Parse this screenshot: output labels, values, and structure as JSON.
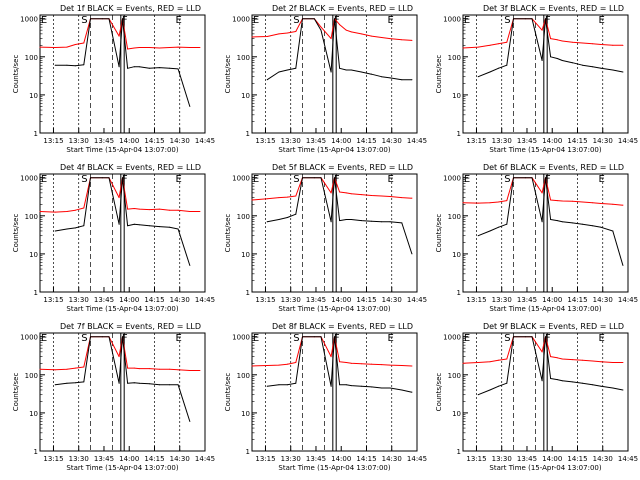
{
  "figure": {
    "ylabel": "Counts/sec",
    "xlabel": "Start Time (15-Apr-04 13:07:00)",
    "x_tick_labels": [
      "13:15",
      "13:30",
      "13:45",
      "14:00",
      "14:15",
      "14:30",
      "14:45"
    ],
    "y_tick_labels": [
      "1",
      "10",
      "100",
      "1000"
    ],
    "markers": [
      "E",
      "S",
      "F",
      "E"
    ],
    "colors": {
      "events": "#000000",
      "lld": "#ff0000",
      "axes": "#000000"
    }
  },
  "chart_data": [
    {
      "type": "line",
      "title": "Det 1f BLACK = Events, RED = LLD",
      "x": [
        "13:07",
        "13:16",
        "13:23",
        "13:28",
        "13:33",
        "13:37",
        "13:44",
        "13:48",
        "13:54",
        "13:56",
        "13:59",
        "14:03",
        "14:06",
        "14:12",
        "14:18",
        "14:24",
        "14:29",
        "14:36",
        "14:42"
      ],
      "series": [
        {
          "name": "LLD",
          "values": [
            180,
            175,
            180,
            210,
            230,
            1000,
            1000,
            1000,
            350,
            1000,
            160,
            170,
            175,
            175,
            170,
            175,
            180,
            175,
            175
          ]
        },
        {
          "name": "Events",
          "values": [
            null,
            60,
            60,
            58,
            62,
            1000,
            1000,
            1000,
            55,
            1000,
            50,
            55,
            55,
            50,
            52,
            50,
            48,
            5,
            null
          ]
        }
      ],
      "ylim": [
        1,
        1000
      ],
      "yscale": "log",
      "xlim": [
        "13:07",
        "14:45"
      ]
    },
    {
      "type": "line",
      "title": "Det 2f BLACK = Events, RED = LLD",
      "x": [
        "13:07",
        "13:16",
        "13:23",
        "13:28",
        "13:33",
        "13:37",
        "13:44",
        "13:48",
        "13:54",
        "13:56",
        "13:59",
        "14:03",
        "14:06",
        "14:12",
        "14:18",
        "14:24",
        "14:29",
        "14:36",
        "14:42"
      ],
      "series": [
        {
          "name": "LLD",
          "values": [
            330,
            340,
            400,
            420,
            460,
            1000,
            1000,
            600,
            300,
            1000,
            700,
            500,
            450,
            400,
            350,
            320,
            300,
            280,
            270
          ]
        },
        {
          "name": "Events",
          "values": [
            null,
            25,
            40,
            45,
            50,
            1000,
            1000,
            500,
            40,
            1000,
            50,
            45,
            45,
            40,
            35,
            30,
            28,
            25,
            25
          ]
        }
      ],
      "ylim": [
        1,
        1000
      ],
      "yscale": "log",
      "xlim": [
        "13:07",
        "14:45"
      ]
    },
    {
      "type": "line",
      "title": "Det 3f BLACK = Events, RED = LLD",
      "x": [
        "13:07",
        "13:16",
        "13:23",
        "13:28",
        "13:33",
        "13:37",
        "13:44",
        "13:48",
        "13:54",
        "13:56",
        "13:59",
        "14:03",
        "14:06",
        "14:12",
        "14:18",
        "14:24",
        "14:29",
        "14:36",
        "14:42"
      ],
      "series": [
        {
          "name": "LLD",
          "values": [
            170,
            180,
            200,
            220,
            240,
            1000,
            1000,
            1000,
            500,
            1000,
            300,
            280,
            260,
            240,
            230,
            220,
            210,
            200,
            200
          ]
        },
        {
          "name": "Events",
          "values": [
            null,
            30,
            40,
            50,
            60,
            1000,
            1000,
            1000,
            80,
            1000,
            100,
            90,
            80,
            70,
            60,
            55,
            50,
            45,
            40
          ]
        }
      ],
      "ylim": [
        1,
        1000
      ],
      "yscale": "log",
      "xlim": [
        "13:07",
        "14:45"
      ]
    },
    {
      "type": "line",
      "title": "Det 4f BLACK = Events, RED = LLD",
      "x": [
        "13:07",
        "13:16",
        "13:23",
        "13:28",
        "13:33",
        "13:37",
        "13:44",
        "13:48",
        "13:54",
        "13:56",
        "13:59",
        "14:03",
        "14:06",
        "14:12",
        "14:18",
        "14:24",
        "14:29",
        "14:36",
        "14:42"
      ],
      "series": [
        {
          "name": "LLD",
          "values": [
            130,
            125,
            130,
            140,
            160,
            1000,
            1000,
            1000,
            300,
            1000,
            150,
            155,
            150,
            145,
            150,
            140,
            140,
            130,
            130
          ]
        },
        {
          "name": "Events",
          "values": [
            null,
            40,
            45,
            48,
            55,
            1000,
            1000,
            1000,
            60,
            1000,
            55,
            60,
            58,
            55,
            52,
            50,
            45,
            5,
            null
          ]
        }
      ],
      "ylim": [
        1,
        1000
      ],
      "yscale": "log",
      "xlim": [
        "13:07",
        "14:45"
      ]
    },
    {
      "type": "line",
      "title": "Det 5f BLACK = Events, RED = LLD",
      "x": [
        "13:07",
        "13:16",
        "13:23",
        "13:28",
        "13:33",
        "13:37",
        "13:44",
        "13:48",
        "13:54",
        "13:56",
        "13:59",
        "14:03",
        "14:06",
        "14:12",
        "14:18",
        "14:24",
        "14:29",
        "14:36",
        "14:42"
      ],
      "series": [
        {
          "name": "LLD",
          "values": [
            260,
            280,
            300,
            310,
            330,
            1000,
            1000,
            1000,
            400,
            1000,
            420,
            400,
            380,
            360,
            340,
            330,
            320,
            300,
            290
          ]
        },
        {
          "name": "Events",
          "values": [
            null,
            70,
            80,
            90,
            110,
            1000,
            1000,
            1000,
            70,
            1000,
            75,
            80,
            80,
            75,
            72,
            70,
            70,
            65,
            10
          ]
        }
      ],
      "ylim": [
        1,
        1000
      ],
      "yscale": "log",
      "xlim": [
        "13:07",
        "14:45"
      ]
    },
    {
      "type": "line",
      "title": "Det 6f BLACK = Events, RED = LLD",
      "x": [
        "13:07",
        "13:16",
        "13:23",
        "13:28",
        "13:33",
        "13:37",
        "13:44",
        "13:48",
        "13:54",
        "13:56",
        "13:59",
        "14:03",
        "14:06",
        "14:12",
        "14:18",
        "14:24",
        "14:29",
        "14:36",
        "14:42"
      ],
      "series": [
        {
          "name": "LLD",
          "values": [
            220,
            215,
            220,
            230,
            250,
            1000,
            1000,
            1000,
            400,
            1000,
            260,
            250,
            245,
            240,
            230,
            220,
            210,
            200,
            190
          ]
        },
        {
          "name": "Events",
          "values": [
            null,
            30,
            40,
            50,
            60,
            1000,
            1000,
            1000,
            70,
            1000,
            80,
            75,
            70,
            65,
            60,
            55,
            50,
            40,
            5
          ]
        }
      ],
      "ylim": [
        1,
        1000
      ],
      "yscale": "log",
      "xlim": [
        "13:07",
        "14:45"
      ]
    },
    {
      "type": "line",
      "title": "Det 7f BLACK = Events, RED = LLD",
      "x": [
        "13:07",
        "13:16",
        "13:23",
        "13:28",
        "13:33",
        "13:37",
        "13:44",
        "13:48",
        "13:54",
        "13:56",
        "13:59",
        "14:03",
        "14:06",
        "14:12",
        "14:18",
        "14:24",
        "14:29",
        "14:36",
        "14:42"
      ],
      "series": [
        {
          "name": "LLD",
          "values": [
            140,
            135,
            140,
            150,
            160,
            1000,
            1000,
            1000,
            300,
            1000,
            150,
            150,
            145,
            145,
            140,
            140,
            135,
            130,
            130
          ]
        },
        {
          "name": "Events",
          "values": [
            null,
            55,
            60,
            62,
            65,
            1000,
            1000,
            1000,
            60,
            1000,
            60,
            62,
            60,
            58,
            55,
            55,
            55,
            6,
            null
          ]
        }
      ],
      "ylim": [
        1,
        1000
      ],
      "yscale": "log",
      "xlim": [
        "13:07",
        "14:45"
      ]
    },
    {
      "type": "line",
      "title": "Det 8f BLACK = Events, RED = LLD",
      "x": [
        "13:07",
        "13:16",
        "13:23",
        "13:28",
        "13:33",
        "13:37",
        "13:44",
        "13:48",
        "13:54",
        "13:56",
        "13:59",
        "14:03",
        "14:06",
        "14:12",
        "14:18",
        "14:24",
        "14:29",
        "14:36",
        "14:42"
      ],
      "series": [
        {
          "name": "LLD",
          "values": [
            170,
            175,
            180,
            190,
            210,
            1000,
            1000,
            1000,
            300,
            1000,
            220,
            210,
            200,
            195,
            190,
            185,
            180,
            175,
            170
          ]
        },
        {
          "name": "Events",
          "values": [
            null,
            50,
            55,
            55,
            60,
            1000,
            1000,
            1000,
            50,
            1000,
            55,
            55,
            52,
            50,
            48,
            45,
            45,
            40,
            35
          ]
        }
      ],
      "ylim": [
        1,
        1000
      ],
      "yscale": "log",
      "xlim": [
        "13:07",
        "14:45"
      ]
    },
    {
      "type": "line",
      "title": "Det 9f BLACK = Events, RED = LLD",
      "x": [
        "13:07",
        "13:16",
        "13:23",
        "13:28",
        "13:33",
        "13:37",
        "13:44",
        "13:48",
        "13:54",
        "13:56",
        "13:59",
        "14:03",
        "14:06",
        "14:12",
        "14:18",
        "14:24",
        "14:29",
        "14:36",
        "14:42"
      ],
      "series": [
        {
          "name": "LLD",
          "values": [
            200,
            210,
            220,
            240,
            260,
            1000,
            1000,
            1000,
            400,
            1000,
            300,
            280,
            260,
            250,
            240,
            230,
            220,
            210,
            210
          ]
        },
        {
          "name": "Events",
          "values": [
            null,
            30,
            40,
            50,
            60,
            1000,
            1000,
            1000,
            70,
            1000,
            80,
            75,
            70,
            65,
            60,
            55,
            50,
            45,
            40
          ]
        }
      ],
      "ylim": [
        1,
        1000
      ],
      "yscale": "log",
      "xlim": [
        "13:07",
        "14:45"
      ]
    }
  ]
}
